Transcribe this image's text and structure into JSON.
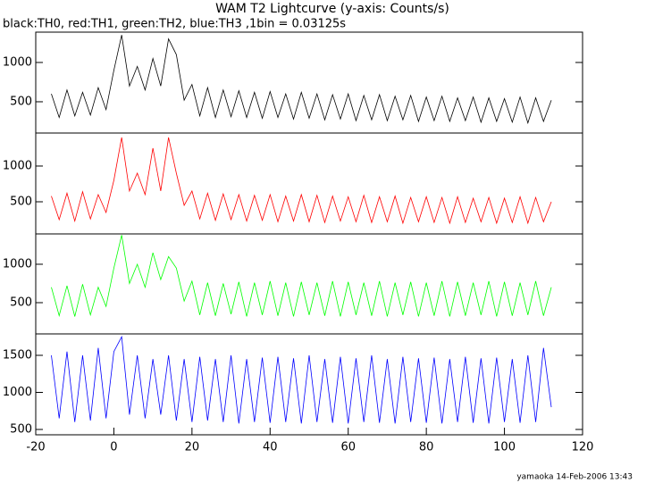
{
  "footer": "yamaoka 14-Feb-2006 13:43",
  "chart_data": [
    {
      "type": "line",
      "title": "WAM T2 Lightcurve (y-axis: Counts/s)",
      "subtitle": "black:TH0, red:TH1, green:TH2, blue:TH3 ,1bin = 0.03125s",
      "xlim": [
        -20,
        120
      ],
      "ylim": [
        102,
        1386
      ],
      "yticks": [
        500,
        1000
      ],
      "x": [
        -16,
        -14,
        -12,
        -10,
        -8,
        -6,
        -4,
        -2,
        0,
        2,
        4,
        6,
        8,
        10,
        12,
        14,
        16,
        18,
        20,
        22,
        24,
        26,
        28,
        30,
        32,
        34,
        36,
        38,
        40,
        42,
        44,
        46,
        48,
        50,
        52,
        54,
        56,
        58,
        60,
        62,
        64,
        66,
        68,
        70,
        72,
        74,
        76,
        78,
        80,
        82,
        84,
        86,
        88,
        90,
        92,
        94,
        96,
        98,
        100,
        102,
        104,
        106,
        108,
        110,
        112
      ],
      "series": [
        {
          "color": "#000000",
          "values": [
            600,
            300,
            650,
            320,
            620,
            330,
            680,
            400,
            900,
            1350,
            700,
            950,
            650,
            1050,
            700,
            1300,
            1100,
            520,
            720,
            320,
            680,
            300,
            650,
            310,
            640,
            300,
            620,
            290,
            630,
            300,
            600,
            280,
            620,
            290,
            600,
            270,
            590,
            280,
            600,
            260,
            580,
            270,
            590,
            260,
            570,
            270,
            580,
            250,
            560,
            260,
            570,
            250,
            550,
            260,
            560,
            240,
            550,
            250,
            540,
            240,
            560,
            230,
            550,
            250,
            520
          ]
        }
      ]
    },
    {
      "type": "line",
      "xlim": [
        -20,
        120
      ],
      "ylim": [
        50,
        1462
      ],
      "yticks": [
        500,
        1000
      ],
      "x": [
        -16,
        -14,
        -12,
        -10,
        -8,
        -6,
        -4,
        -2,
        0,
        2,
        4,
        6,
        8,
        10,
        12,
        14,
        16,
        18,
        20,
        22,
        24,
        26,
        28,
        30,
        32,
        34,
        36,
        38,
        40,
        42,
        44,
        46,
        48,
        50,
        52,
        54,
        56,
        58,
        60,
        62,
        64,
        66,
        68,
        70,
        72,
        74,
        76,
        78,
        80,
        82,
        84,
        86,
        88,
        90,
        92,
        94,
        96,
        98,
        100,
        102,
        104,
        106,
        108,
        110,
        112
      ],
      "series": [
        {
          "color": "#ff0000",
          "values": [
            580,
            250,
            620,
            230,
            640,
            260,
            600,
            350,
            800,
            1400,
            650,
            900,
            600,
            1250,
            650,
            1400,
            900,
            450,
            650,
            260,
            620,
            240,
            610,
            250,
            600,
            230,
            590,
            240,
            600,
            220,
            580,
            230,
            600,
            220,
            590,
            210,
            580,
            230,
            570,
            220,
            590,
            210,
            570,
            220,
            580,
            200,
            560,
            220,
            570,
            210,
            560,
            200,
            570,
            210,
            550,
            220,
            560,
            200,
            550,
            210,
            570,
            200,
            560,
            220,
            500
          ]
        }
      ]
    },
    {
      "type": "line",
      "xlim": [
        -20,
        120
      ],
      "ylim": [
        93,
        1395
      ],
      "yticks": [
        500,
        1000
      ],
      "x": [
        -16,
        -14,
        -12,
        -10,
        -8,
        -6,
        -4,
        -2,
        0,
        2,
        4,
        6,
        8,
        10,
        12,
        14,
        16,
        18,
        20,
        22,
        24,
        26,
        28,
        30,
        32,
        34,
        36,
        38,
        40,
        42,
        44,
        46,
        48,
        50,
        52,
        54,
        56,
        58,
        60,
        62,
        64,
        66,
        68,
        70,
        72,
        74,
        76,
        78,
        80,
        82,
        84,
        86,
        88,
        90,
        92,
        94,
        96,
        98,
        100,
        102,
        104,
        106,
        108,
        110,
        112
      ],
      "series": [
        {
          "color": "#00ff00",
          "values": [
            700,
            330,
            720,
            320,
            740,
            340,
            700,
            450,
            950,
            1380,
            750,
            1000,
            700,
            1150,
            800,
            1100,
            950,
            520,
            780,
            340,
            760,
            330,
            750,
            350,
            770,
            320,
            760,
            340,
            780,
            330,
            760,
            320,
            770,
            340,
            760,
            330,
            780,
            320,
            770,
            340,
            760,
            330,
            780,
            320,
            760,
            340,
            770,
            320,
            760,
            330,
            780,
            320,
            770,
            330,
            760,
            340,
            780,
            320,
            770,
            330,
            760,
            340,
            780,
            330,
            700
          ]
        }
      ]
    },
    {
      "type": "line",
      "xlim": [
        -20,
        120
      ],
      "ylim": [
        428,
        1789
      ],
      "yticks": [
        500,
        1000,
        1500
      ],
      "xticks": [
        -20,
        0,
        20,
        40,
        60,
        80,
        100,
        120
      ],
      "x": [
        -16,
        -14,
        -12,
        -10,
        -8,
        -6,
        -4,
        -2,
        0,
        2,
        4,
        6,
        8,
        10,
        12,
        14,
        16,
        18,
        20,
        22,
        24,
        26,
        28,
        30,
        32,
        34,
        36,
        38,
        40,
        42,
        44,
        46,
        48,
        50,
        52,
        54,
        56,
        58,
        60,
        62,
        64,
        66,
        68,
        70,
        72,
        74,
        76,
        78,
        80,
        82,
        84,
        86,
        88,
        90,
        92,
        94,
        96,
        98,
        100,
        102,
        104,
        106,
        108,
        110,
        112
      ],
      "series": [
        {
          "color": "#0000ff",
          "values": [
            1500,
            650,
            1550,
            600,
            1500,
            620,
            1600,
            650,
            1550,
            1750,
            700,
            1500,
            650,
            1450,
            700,
            1500,
            620,
            1450,
            600,
            1480,
            620,
            1450,
            600,
            1500,
            580,
            1450,
            600,
            1470,
            590,
            1480,
            600,
            1460,
            580,
            1500,
            600,
            1450,
            590,
            1480,
            580,
            1460,
            600,
            1500,
            590,
            1450,
            580,
            1480,
            600,
            1460,
            590,
            1470,
            580,
            1450,
            600,
            1480,
            590,
            1460,
            580,
            1470,
            600,
            1450,
            590,
            1500,
            600,
            1600,
            800
          ]
        }
      ]
    }
  ]
}
